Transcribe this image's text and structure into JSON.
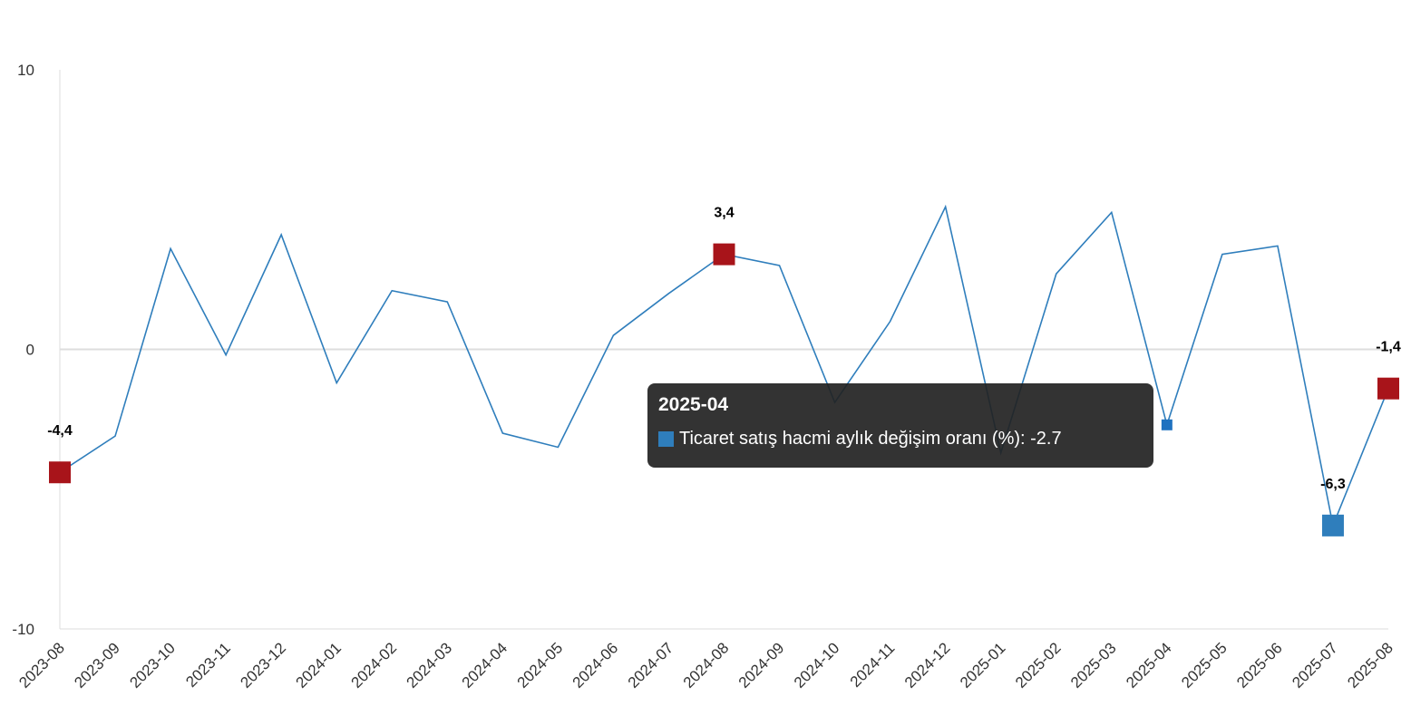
{
  "chart_data": {
    "type": "line",
    "categories": [
      "2023-08",
      "2023-09",
      "2023-10",
      "2023-11",
      "2023-12",
      "2024-01",
      "2024-02",
      "2024-03",
      "2024-04",
      "2024-05",
      "2024-06",
      "2024-07",
      "2024-08",
      "2024-09",
      "2024-10",
      "2024-11",
      "2024-12",
      "2025-01",
      "2025-02",
      "2025-03",
      "2025-04",
      "2025-05",
      "2025-06",
      "2025-07",
      "2025-08"
    ],
    "series": [
      {
        "name": "Ticaret satış hacmi aylık değişim oranı (%)",
        "values": [
          -4.4,
          -3.1,
          3.6,
          -0.2,
          4.1,
          -1.2,
          2.1,
          1.7,
          -3.0,
          -3.5,
          0.5,
          2.0,
          3.4,
          3.0,
          -1.9,
          1.0,
          5.1,
          -3.7,
          2.7,
          4.9,
          -2.7,
          3.4,
          3.7,
          -6.3,
          -1.4
        ]
      }
    ],
    "ylim": [
      -10,
      10
    ],
    "yticks": [
      "10",
      "0",
      "-10"
    ],
    "grid": "zero-line only",
    "line_color": "#2f7ebc",
    "highlight_color": "#a8141a",
    "data_labels": [
      {
        "index": 0,
        "text": "-4,4",
        "color": "#a8141a"
      },
      {
        "index": 12,
        "text": "3,4",
        "color": "#a8141a"
      },
      {
        "index": 23,
        "text": "-6,3",
        "color": "#2f7ebc"
      },
      {
        "index": 24,
        "text": "-1,4",
        "color": "#a8141a"
      }
    ],
    "active_index": 20
  },
  "tooltip": {
    "title": "2025-04",
    "label": "Ticaret satış hacmi aylık değişim oranı (%): -2.7"
  }
}
